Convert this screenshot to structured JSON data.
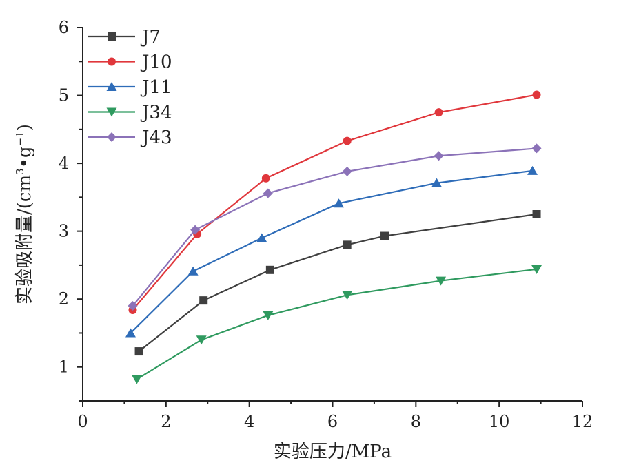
{
  "chart_data": {
    "type": "line",
    "title": "",
    "xlabel": "实验压力/MPa",
    "ylabel_main": "实验吸附量/(cm",
    "ylabel_sup1": "3",
    "ylabel_mid": "•g",
    "ylabel_sup2": "−1",
    "ylabel_end": ")",
    "xlim": [
      0,
      12
    ],
    "ylim": [
      0.5,
      6
    ],
    "x_ticks": [
      0,
      2,
      4,
      6,
      8,
      10,
      12
    ],
    "y_ticks": [
      1,
      2,
      3,
      4,
      5,
      6
    ],
    "grid": false,
    "legend_position": "top-left",
    "series": [
      {
        "name": "J7",
        "color": "#3f3f3f",
        "marker": "square",
        "x": [
          1.35,
          2.9,
          4.5,
          6.35,
          7.25,
          10.9
        ],
        "y": [
          1.23,
          1.98,
          2.43,
          2.8,
          2.93,
          3.25
        ]
      },
      {
        "name": "J10",
        "color": "#e0373c",
        "marker": "circle",
        "x": [
          1.2,
          2.75,
          4.4,
          6.35,
          8.55,
          10.9
        ],
        "y": [
          1.84,
          2.96,
          3.78,
          4.33,
          4.75,
          5.01
        ]
      },
      {
        "name": "J11",
        "color": "#2e6cb8",
        "marker": "triangle-up",
        "x": [
          1.15,
          2.65,
          4.3,
          6.15,
          8.5,
          10.8
        ],
        "y": [
          1.5,
          2.41,
          2.9,
          3.41,
          3.71,
          3.89
        ]
      },
      {
        "name": "J34",
        "color": "#2f9a5f",
        "marker": "triangle-down",
        "x": [
          1.3,
          2.85,
          4.45,
          6.35,
          8.6,
          10.9
        ],
        "y": [
          0.82,
          1.4,
          1.76,
          2.06,
          2.27,
          2.44
        ]
      },
      {
        "name": "J43",
        "color": "#8b72b8",
        "marker": "diamond",
        "x": [
          1.2,
          2.7,
          4.45,
          6.35,
          8.55,
          10.9
        ],
        "y": [
          1.9,
          3.02,
          3.56,
          3.88,
          4.11,
          4.22
        ]
      }
    ]
  }
}
